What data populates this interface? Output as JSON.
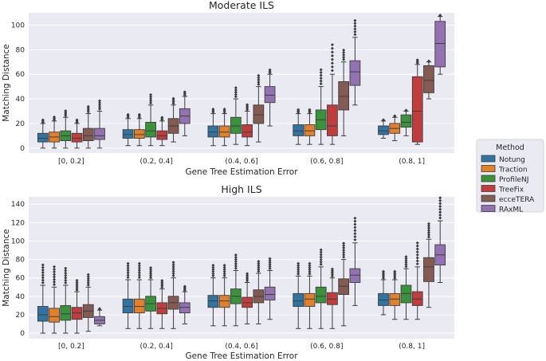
{
  "chart_data": {
    "type": "boxplot",
    "legend": {
      "title": "Method",
      "placement": "right",
      "entries": [
        {
          "name": "Notung",
          "color": "#3274a1"
        },
        {
          "name": "Traction",
          "color": "#e1812c"
        },
        {
          "name": "ProfileNJ",
          "color": "#3a923a"
        },
        {
          "name": "TreeFix",
          "color": "#c03d3e"
        },
        {
          "name": "ecceTERA",
          "color": "#9372b2"
        },
        {
          "name": "RAxML",
          "color": "#9372b2"
        }
      ]
    },
    "panels": [
      {
        "title": "Moderate ILS",
        "xlabel": "Gene Tree Estimation Error",
        "ylabel": "Matching Distance",
        "ylim": [
          -4,
          110
        ],
        "yticks": [
          0,
          20,
          40,
          60,
          80,
          100
        ],
        "categories": [
          "[0, 0.2]",
          "(0.2, 0.4]",
          "(0.4, 0.6]",
          "(0.6, 0.8]",
          "(0.8, 1]"
        ],
        "boxes": [
          [
            [
              0,
              5,
              8,
              12,
              20
            ],
            [
              0,
              5,
              9,
              13,
              22
            ],
            [
              0,
              6,
              10,
              14,
              25
            ],
            [
              0,
              5,
              8,
              12,
              20
            ],
            [
              0,
              6,
              10,
              16,
              28
            ],
            [
              0,
              7,
              10,
              16,
              30
            ]
          ],
          [
            [
              2,
              8,
              11,
              15,
              24
            ],
            [
              2,
              8,
              11,
              15,
              24
            ],
            [
              2,
              9,
              14,
              21,
              35
            ],
            [
              2,
              7,
              10,
              14,
              22
            ],
            [
              5,
              12,
              18,
              24,
              35
            ],
            [
              10,
              20,
              26,
              32,
              42
            ]
          ],
          [
            [
              2,
              9,
              13,
              18,
              28
            ],
            [
              2,
              9,
              13,
              18,
              28
            ],
            [
              3,
              12,
              18,
              25,
              40
            ],
            [
              2,
              9,
              13,
              19,
              30
            ],
            [
              5,
              20,
              27,
              35,
              50
            ],
            [
              18,
              37,
              43,
              50,
              60
            ]
          ],
          [
            [
              3,
              10,
              14,
              19,
              28
            ],
            [
              3,
              10,
              14,
              19,
              28
            ],
            [
              3,
              15,
              23,
              31,
              50
            ],
            [
              3,
              10,
              18,
              35,
              60
            ],
            [
              10,
              31,
              42,
              54,
              70
            ],
            [
              35,
              51,
              62,
              71,
              90
            ]
          ],
          [
            [
              8,
              11,
              14,
              18,
              22
            ],
            [
              6,
              12,
              16,
              20,
              25
            ],
            [
              10,
              17,
              21,
              27,
              30
            ],
            [
              3,
              5,
              30,
              58,
              68
            ],
            [
              40,
              45,
              55,
              67,
              70
            ],
            [
              60,
              66,
              85,
              103,
              107
            ]
          ]
        ]
      },
      {
        "title": "High ILS",
        "xlabel": "Gene Tree Estimation Error",
        "ylabel": "Matching Distance",
        "ylim": [
          -6,
          148
        ],
        "yticks": [
          0,
          20,
          40,
          60,
          80,
          100,
          120,
          140
        ],
        "categories": [
          "[0, 0.2]",
          "(0.2, 0.4]",
          "(0.4, 0.6]",
          "(0.6, 0.8]",
          "(0.8, 1]"
        ],
        "boxes": [
          [
            [
              0,
              13,
              20,
              29,
              52
            ],
            [
              0,
              12,
              18,
              27,
              50
            ],
            [
              0,
              14,
              21,
              30,
              52
            ],
            [
              0,
              15,
              22,
              28,
              45
            ],
            [
              2,
              17,
              24,
              31,
              50
            ],
            [
              8,
              10,
              14,
              18,
              25
            ]
          ],
          [
            [
              5,
              22,
              29,
              37,
              58
            ],
            [
              5,
              22,
              29,
              37,
              58
            ],
            [
              5,
              24,
              32,
              40,
              58
            ],
            [
              5,
              21,
              27,
              33,
              48
            ],
            [
              5,
              26,
              33,
              40,
              60
            ],
            [
              10,
              22,
              28,
              33,
              45
            ]
          ],
          [
            [
              8,
              28,
              35,
              41,
              60
            ],
            [
              8,
              28,
              35,
              41,
              60
            ],
            [
              8,
              32,
              40,
              48,
              68
            ],
            [
              10,
              28,
              33,
              39,
              55
            ],
            [
              10,
              33,
              40,
              47,
              65
            ],
            [
              15,
              36,
              42,
              50,
              68
            ]
          ],
          [
            [
              5,
              29,
              35,
              43,
              62
            ],
            [
              5,
              29,
              37,
              43,
              62
            ],
            [
              5,
              33,
              40,
              50,
              72
            ],
            [
              5,
              31,
              37,
              44,
              60
            ],
            [
              8,
              42,
              51,
              59,
              80
            ],
            [
              30,
              55,
              63,
              70,
              98
            ]
          ],
          [
            [
              20,
              30,
              36,
              43,
              58
            ],
            [
              15,
              30,
              37,
              43,
              58
            ],
            [
              15,
              33,
              43,
              52,
              70
            ],
            [
              15,
              30,
              37,
              45,
              72
            ],
            [
              28,
              56,
              72,
              82,
              102
            ],
            [
              55,
              74,
              85,
              96,
              122
            ]
          ]
        ]
      }
    ]
  }
}
